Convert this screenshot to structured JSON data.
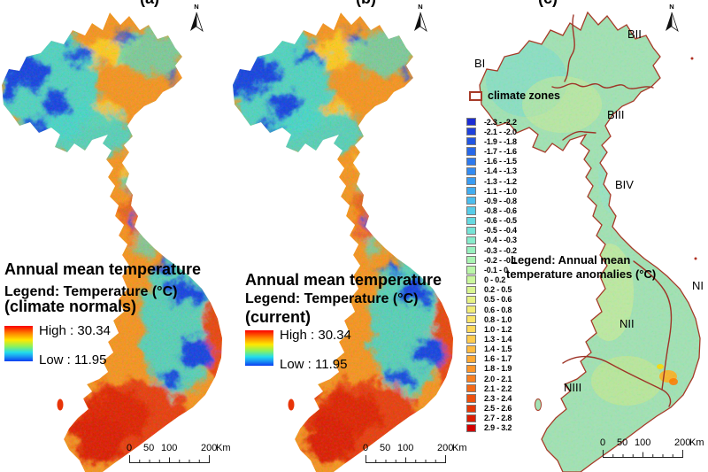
{
  "figure": {
    "panel_labels": [
      "(a)",
      "(b)",
      "(c)"
    ],
    "north_label": "N"
  },
  "panels": [
    {
      "label": "(a)",
      "title_line1": "Annual mean temperature",
      "title_line2": "(climate normals)",
      "legend_title": "Legend: Temperature (°C)",
      "high_label": "High : 30.34",
      "low_label": "Low : 11.95",
      "scalebar": {
        "t0": "0",
        "t1": "50",
        "t2": "100",
        "t3": "200",
        "unit": "Km"
      }
    },
    {
      "label": "(b)",
      "title_line1": "Annual mean temperature",
      "title_line2": "(current)",
      "legend_title": "Legend: Temperature (°C)",
      "high_label": "High : 30.34",
      "low_label": "Low : 11.95",
      "scalebar": {
        "t0": "0",
        "t1": "50",
        "t2": "100",
        "t3": "200",
        "unit": "Km"
      }
    },
    {
      "label": "(c)",
      "legend_title_line1": "Legend: Annual mean",
      "legend_title_line2": "temperature anomalies (°C)",
      "climate_zones_label": "climate zones",
      "zone_labels": [
        "BI",
        "BII",
        "BIII",
        "BIV",
        "NI",
        "NII",
        "NIII"
      ],
      "scalebar": {
        "t0": "0",
        "t1": "50",
        "t2": "100",
        "t3": "200",
        "unit": "Km"
      }
    }
  ],
  "temperature_ramp": {
    "high": 30.34,
    "low": 11.95,
    "colors_top_to_bottom": [
      "#fa0000",
      "#ff8a00",
      "#ffe800",
      "#8cf25c",
      "#22dcec",
      "#0c3ef2"
    ]
  },
  "map_colors": {
    "zone_boundary": "#9e3528",
    "panel_c_base": "#a2e2b4",
    "base_orange": "#f79420"
  },
  "anomaly_scale": {
    "entries": [
      {
        "range": "-2.3 - -2.2",
        "color": "#1c2dd4"
      },
      {
        "range": "-2.1 - -2.0",
        "color": "#1f41dc"
      },
      {
        "range": "-1.9 - -1.8",
        "color": "#2255e2"
      },
      {
        "range": "-1.7 - -1.6",
        "color": "#2767e8"
      },
      {
        "range": "-1.6 - -1.5",
        "color": "#2d79ee"
      },
      {
        "range": "-1.4 - -1.3",
        "color": "#338bf2"
      },
      {
        "range": "-1.3 - -1.2",
        "color": "#3a9cf2"
      },
      {
        "range": "-1.1 - -1.0",
        "color": "#42adf0"
      },
      {
        "range": "-0.9 - -0.8",
        "color": "#4cbdee"
      },
      {
        "range": "-0.8 - -0.6",
        "color": "#58cce8"
      },
      {
        "range": "-0.6 - -0.5",
        "color": "#66d9e0"
      },
      {
        "range": "-0.5 - -0.4",
        "color": "#76e3d6"
      },
      {
        "range": "-0.4 - -0.3",
        "color": "#87ebcb"
      },
      {
        "range": "-0.3 - -0.2",
        "color": "#98f0bf"
      },
      {
        "range": "-0.2 - -0.1",
        "color": "#a9f4b3"
      },
      {
        "range": "-0.1 - 0",
        "color": "#baf6a8"
      },
      {
        "range": "0 - 0.2",
        "color": "#caf79d"
      },
      {
        "range": "0.2 - 0.5",
        "color": "#d9f591"
      },
      {
        "range": "0.5 - 0.6",
        "color": "#e6f285"
      },
      {
        "range": "0.6 - 0.8",
        "color": "#f1ec78"
      },
      {
        "range": "0.8 - 1.0",
        "color": "#f9e46a"
      },
      {
        "range": "1.0 - 1.2",
        "color": "#fed95c"
      },
      {
        "range": "1.3 - 1.4",
        "color": "#ffcb4e"
      },
      {
        "range": "1.4 - 1.5",
        "color": "#ffbb41"
      },
      {
        "range": "1.6 - 1.7",
        "color": "#ffa935"
      },
      {
        "range": "1.8 - 1.9",
        "color": "#fd952a"
      },
      {
        "range": "2.0 - 2.1",
        "color": "#f97f20"
      },
      {
        "range": "2.1 - 2.2",
        "color": "#f46817"
      },
      {
        "range": "2.3 - 2.4",
        "color": "#ed500f"
      },
      {
        "range": "2.5 - 2.6",
        "color": "#e53708"
      },
      {
        "range": "2.7 - 2.8",
        "color": "#dc1d03"
      },
      {
        "range": "2.9 - 3.2",
        "color": "#d20000"
      }
    ]
  }
}
